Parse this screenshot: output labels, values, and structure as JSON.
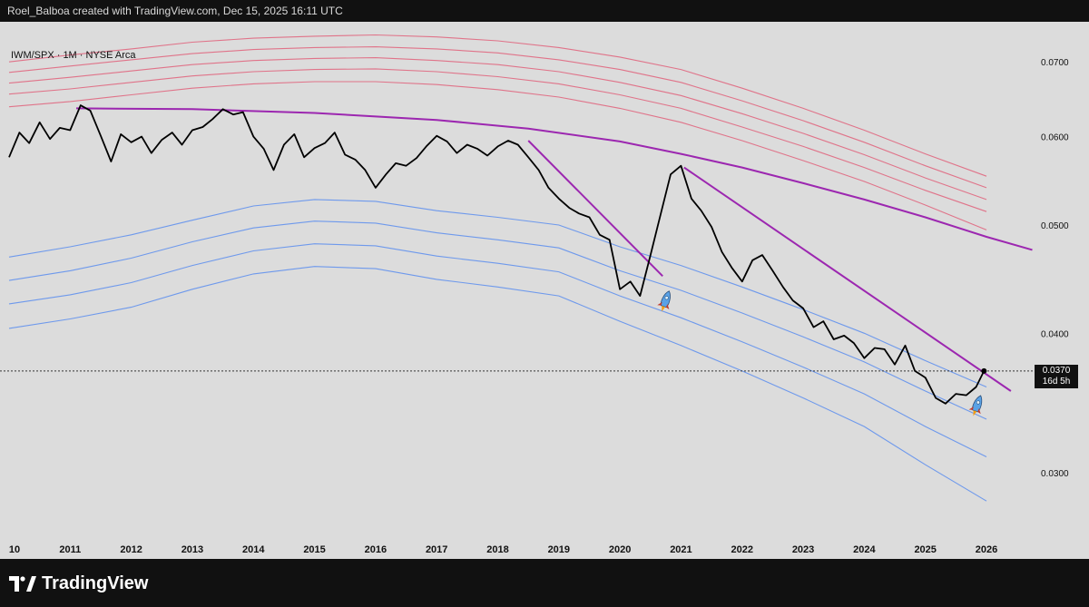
{
  "header": {
    "attribution": "Roel_Balboa created with TradingView.com, Dec 15, 2025 16:11 UTC"
  },
  "symbol": {
    "label": "IWM/SPX · 1M · NYSE Arca"
  },
  "brand": {
    "name": "TradingView"
  },
  "price_label": {
    "value": "0.0370",
    "countdown": "16d 5h"
  },
  "colors": {
    "price_line": "#000000",
    "upper_bands": "#e0607a",
    "lower_bands": "#5b8def",
    "trendlines": "#9c27b0",
    "background": "#dcdcdc"
  },
  "icons": [
    "rocket-icon",
    "rocket-icon"
  ],
  "chart_data": {
    "type": "line",
    "title": "",
    "xlabel": "",
    "ylabel": "",
    "y_scale": "log",
    "ylim": [
      0.027,
      0.075
    ],
    "y_ticks": [
      "0.0300",
      "0.0400",
      "0.0500",
      "0.0600",
      "0.0700"
    ],
    "y_tick_values": [
      0.03,
      0.04,
      0.05,
      0.06,
      0.07
    ],
    "x_ticks": [
      "10",
      "2011",
      "2012",
      "2013",
      "2014",
      "2015",
      "2016",
      "2017",
      "2018",
      "2019",
      "2020",
      "2021",
      "2022",
      "2023",
      "2024",
      "2025",
      "2026"
    ],
    "x_tick_years": [
      2010,
      2011,
      2012,
      2013,
      2014,
      2015,
      2016,
      2017,
      2018,
      2019,
      2020,
      2021,
      2022,
      2023,
      2024,
      2025,
      2026
    ],
    "xlim": [
      2010.0,
      2026.75
    ],
    "series": [
      {
        "role": "price",
        "x": [
          2010.0,
          2010.17,
          2010.33,
          2010.5,
          2010.67,
          2010.83,
          2011.0,
          2011.17,
          2011.33,
          2011.5,
          2011.67,
          2011.83,
          2012.0,
          2012.17,
          2012.33,
          2012.5,
          2012.67,
          2012.83,
          2013.0,
          2013.17,
          2013.33,
          2013.5,
          2013.67,
          2013.83,
          2014.0,
          2014.17,
          2014.33,
          2014.5,
          2014.67,
          2014.83,
          2015.0,
          2015.17,
          2015.33,
          2015.5,
          2015.67,
          2015.83,
          2016.0,
          2016.17,
          2016.33,
          2016.5,
          2016.67,
          2016.83,
          2017.0,
          2017.17,
          2017.33,
          2017.5,
          2017.67,
          2017.83,
          2018.0,
          2018.17,
          2018.33,
          2018.5,
          2018.67,
          2018.83,
          2019.0,
          2019.17,
          2019.33,
          2019.5,
          2019.67,
          2019.83,
          2020.0,
          2020.17,
          2020.33,
          2020.5,
          2020.67,
          2020.83,
          2021.0,
          2021.17,
          2021.33,
          2021.5,
          2021.67,
          2021.83,
          2022.0,
          2022.17,
          2022.33,
          2022.5,
          2022.67,
          2022.83,
          2023.0,
          2023.17,
          2023.33,
          2023.5,
          2023.67,
          2023.83,
          2024.0,
          2024.17,
          2024.33,
          2024.5,
          2024.67,
          2024.83,
          2025.0,
          2025.17,
          2025.33,
          2025.5,
          2025.67,
          2025.83,
          2025.96
        ],
        "values": [
          0.0575,
          0.0605,
          0.0592,
          0.0618,
          0.0597,
          0.0611,
          0.0608,
          0.064,
          0.0633,
          0.0601,
          0.057,
          0.0603,
          0.0593,
          0.06,
          0.058,
          0.0596,
          0.0605,
          0.059,
          0.0608,
          0.0612,
          0.0622,
          0.0635,
          0.0628,
          0.0631,
          0.06,
          0.0585,
          0.056,
          0.059,
          0.0603,
          0.0575,
          0.0586,
          0.0592,
          0.0605,
          0.0578,
          0.0572,
          0.056,
          0.054,
          0.0555,
          0.0568,
          0.0565,
          0.0574,
          0.0588,
          0.0601,
          0.0594,
          0.058,
          0.059,
          0.0585,
          0.0577,
          0.0588,
          0.0595,
          0.059,
          0.0575,
          0.056,
          0.054,
          0.0528,
          0.0518,
          0.0512,
          0.0508,
          0.049,
          0.0485,
          0.0438,
          0.0445,
          0.0432,
          0.047,
          0.0512,
          0.0555,
          0.0565,
          0.0528,
          0.0515,
          0.0498,
          0.0473,
          0.0458,
          0.0445,
          0.0465,
          0.047,
          0.0455,
          0.044,
          0.0428,
          0.0421,
          0.0405,
          0.041,
          0.0395,
          0.0398,
          0.0392,
          0.038,
          0.0388,
          0.0387,
          0.0375,
          0.039,
          0.037,
          0.0365,
          0.035,
          0.0346,
          0.0353,
          0.0352,
          0.0358,
          0.037
        ]
      },
      {
        "role": "upper_band",
        "x": [
          2010,
          2011,
          2012,
          2013,
          2014,
          2015,
          2016,
          2017,
          2018,
          2019,
          2020,
          2021,
          2022,
          2023,
          2024,
          2025,
          2026
        ],
        "values": [
          0.07,
          0.071,
          0.0719,
          0.0729,
          0.0735,
          0.0738,
          0.074,
          0.0737,
          0.0731,
          0.0721,
          0.0707,
          0.0689,
          0.0663,
          0.0636,
          0.0608,
          0.0579,
          0.0553
        ]
      },
      {
        "role": "upper_band",
        "x": [
          2010,
          2011,
          2012,
          2013,
          2014,
          2015,
          2016,
          2017,
          2018,
          2019,
          2020,
          2021,
          2022,
          2023,
          2024,
          2025,
          2026
        ],
        "values": [
          0.0685,
          0.0694,
          0.0703,
          0.0712,
          0.0718,
          0.0721,
          0.0722,
          0.0719,
          0.0713,
          0.0703,
          0.0689,
          0.0671,
          0.0646,
          0.062,
          0.0593,
          0.0565,
          0.054
        ]
      },
      {
        "role": "upper_band",
        "x": [
          2010,
          2011,
          2012,
          2013,
          2014,
          2015,
          2016,
          2017,
          2018,
          2019,
          2020,
          2021,
          2022,
          2023,
          2024,
          2025,
          2026
        ],
        "values": [
          0.067,
          0.0678,
          0.0687,
          0.0696,
          0.0702,
          0.0705,
          0.0706,
          0.0702,
          0.0696,
          0.0686,
          0.0671,
          0.0653,
          0.0629,
          0.0604,
          0.0578,
          0.0551,
          0.0527
        ]
      },
      {
        "role": "upper_band",
        "x": [
          2010,
          2011,
          2012,
          2013,
          2014,
          2015,
          2016,
          2017,
          2018,
          2019,
          2020,
          2021,
          2022,
          2023,
          2024,
          2025,
          2026
        ],
        "values": [
          0.0655,
          0.0662,
          0.0671,
          0.068,
          0.0686,
          0.0689,
          0.069,
          0.0686,
          0.0679,
          0.0669,
          0.0654,
          0.0636,
          0.0612,
          0.0588,
          0.0563,
          0.0537,
          0.0514
        ]
      },
      {
        "role": "upper_band",
        "x": [
          2010,
          2011,
          2012,
          2013,
          2014,
          2015,
          2016,
          2017,
          2018,
          2019,
          2020,
          2021,
          2022,
          2023,
          2024,
          2025,
          2026
        ],
        "values": [
          0.0638,
          0.0645,
          0.0654,
          0.0663,
          0.0669,
          0.0672,
          0.0672,
          0.0668,
          0.0661,
          0.0651,
          0.0636,
          0.0618,
          0.0595,
          0.0571,
          0.0547,
          0.0521,
          0.0495
        ]
      },
      {
        "role": "lower_band",
        "x": [
          2010,
          2011,
          2012,
          2013,
          2014,
          2015,
          2016,
          2017,
          2018,
          2019,
          2020,
          2021,
          2022,
          2023,
          2024,
          2025,
          2026
        ],
        "values": [
          0.0468,
          0.0478,
          0.049,
          0.0505,
          0.052,
          0.0527,
          0.0525,
          0.0515,
          0.0508,
          0.05,
          0.0478,
          0.046,
          0.044,
          0.042,
          0.04,
          0.0378,
          0.0358
        ]
      },
      {
        "role": "lower_band",
        "x": [
          2010,
          2011,
          2012,
          2013,
          2014,
          2015,
          2016,
          2017,
          2018,
          2019,
          2020,
          2021,
          2022,
          2023,
          2024,
          2025,
          2026
        ],
        "values": [
          0.0446,
          0.0455,
          0.0467,
          0.0483,
          0.0497,
          0.0504,
          0.0502,
          0.0492,
          0.0485,
          0.0477,
          0.0455,
          0.0437,
          0.0417,
          0.0397,
          0.0377,
          0.0355,
          0.0335
        ]
      },
      {
        "role": "lower_band",
        "x": [
          2010,
          2011,
          2012,
          2013,
          2014,
          2015,
          2016,
          2017,
          2018,
          2019,
          2020,
          2021,
          2022,
          2023,
          2024,
          2025,
          2026
        ],
        "values": [
          0.0425,
          0.0433,
          0.0444,
          0.046,
          0.0474,
          0.0481,
          0.0479,
          0.0469,
          0.0462,
          0.0454,
          0.0432,
          0.0413,
          0.0393,
          0.0373,
          0.0353,
          0.033,
          0.031
        ]
      },
      {
        "role": "lower_band",
        "x": [
          2010,
          2011,
          2012,
          2013,
          2014,
          2015,
          2016,
          2017,
          2018,
          2019,
          2020,
          2021,
          2022,
          2023,
          2024,
          2025,
          2026
        ],
        "values": [
          0.0404,
          0.0412,
          0.0422,
          0.0438,
          0.0452,
          0.0459,
          0.0457,
          0.0447,
          0.044,
          0.0432,
          0.041,
          0.039,
          0.037,
          0.035,
          0.033,
          0.0305,
          0.0283
        ]
      }
    ],
    "trendlines": [
      {
        "type": "arc",
        "x": [
          2011.1,
          2013,
          2015,
          2017,
          2018.5,
          2020,
          2021,
          2022,
          2023,
          2024,
          2025,
          2026,
          2026.75
        ],
        "values": [
          0.0636,
          0.0635,
          0.063,
          0.0621,
          0.061,
          0.0594,
          0.0579,
          0.0563,
          0.0545,
          0.0527,
          0.0508,
          0.0488,
          0.0475
        ]
      },
      {
        "x": [
          2018.5,
          2020.7
        ],
        "values": [
          0.0595,
          0.045
        ]
      },
      {
        "x": [
          2021.05,
          2026.4
        ],
        "values": [
          0.0563,
          0.0355
        ]
      }
    ],
    "annotations": [
      {
        "icon": "rocket-icon",
        "x": 2020.75,
        "value": 0.0428
      },
      {
        "icon": "rocket-icon",
        "x": 2025.85,
        "value": 0.0345
      }
    ],
    "last_value": 0.037,
    "grid": false,
    "legend": "none"
  }
}
